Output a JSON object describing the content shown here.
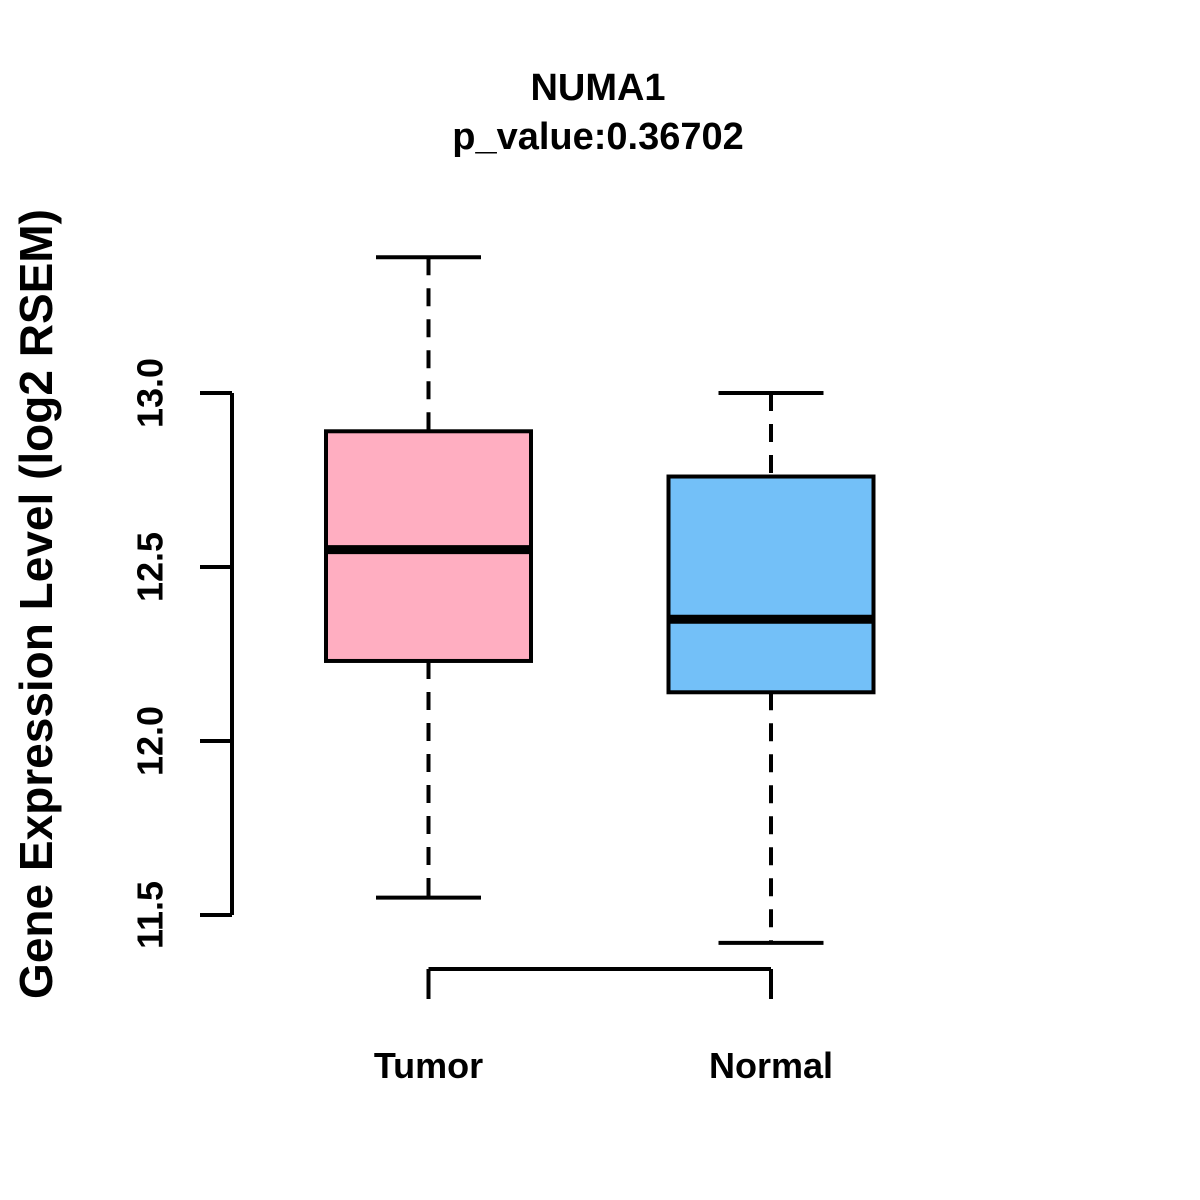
{
  "chart_data": {
    "type": "boxplot",
    "title": "NUMA1",
    "subtitle": "p_value:0.36702",
    "p_value": 0.36702,
    "ylabel": "Gene Expression Level (log2 RSEM)",
    "axis_range": [
      11.5,
      13.0
    ],
    "yticks": [
      {
        "label": "11.5",
        "value": 11.5
      },
      {
        "label": "12.0",
        "value": 12.0
      },
      {
        "label": "12.5",
        "value": 12.5
      },
      {
        "label": "13.0",
        "value": 13.0
      }
    ],
    "categories": [
      "Tumor",
      "Normal"
    ],
    "series": [
      {
        "name": "Tumor",
        "color": "#FFAEC1",
        "whisker_low": 11.55,
        "q1": 12.23,
        "median": 12.55,
        "q3": 12.89,
        "whisker_high": 13.39
      },
      {
        "name": "Normal",
        "color": "#73C0F8",
        "whisker_low": 11.42,
        "q1": 12.14,
        "median": 12.35,
        "q3": 12.76,
        "whisker_high": 13.0
      }
    ],
    "colors": {
      "box_border": "#000000",
      "text": "#000000",
      "background": "#FFFFFF"
    },
    "legend": "none",
    "grid": false
  }
}
